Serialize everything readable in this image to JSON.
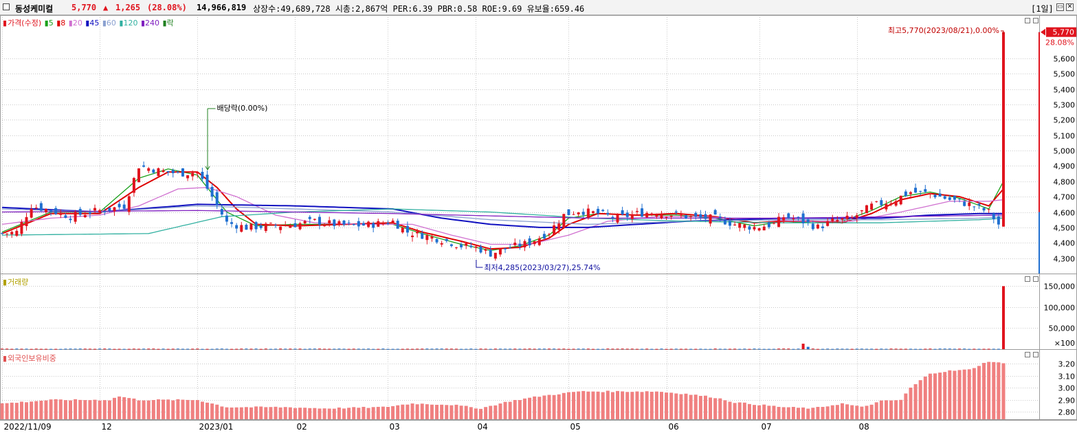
{
  "header": {
    "name": "동성케미컬",
    "price": "5,770",
    "change_arrow": "▲",
    "change": "1,265",
    "change_pct": "(28.08%)",
    "volume": "14,966,819",
    "stats": "상장수:49,689,728 시총:2,867억 PER:6.39 PBR:0.58 ROE:9.69 유보율:659.46",
    "period": "[1일]"
  },
  "legends": {
    "price": {
      "marker": "▮",
      "label": "가격(수정)",
      "items": [
        {
          "label": "5",
          "color": "#1aa01a"
        },
        {
          "label": "8",
          "color": "#dd0000"
        },
        {
          "label": "20",
          "color": "#d070d0"
        },
        {
          "label": "45",
          "color": "#1010c0"
        },
        {
          "label": "60",
          "color": "#8aa0d0"
        },
        {
          "label": "120",
          "color": "#30b0a0"
        },
        {
          "label": "240",
          "color": "#8020c0"
        },
        {
          "label": "락",
          "color": "#208020"
        }
      ]
    },
    "volume": {
      "marker": "▮",
      "label": "거래량"
    },
    "foreign": {
      "marker": "▮",
      "label": "외국인보유비중"
    }
  },
  "annotations": {
    "dividend": "배당락(0.00%)",
    "high": "최고5,770(2023/08/21),0.00%",
    "low": "최저4,285(2023/03/27),25.74%",
    "last_price": "5,770",
    "last_pct": "28.08%"
  },
  "colors": {
    "up": "#e0141e",
    "down": "#1f6fd0",
    "foreign": "#f08080",
    "grid": "#c8c8c8"
  },
  "chart_data": [
    {
      "type": "candlestick",
      "title": "가격(수정)",
      "ylim": [
        4200,
        5800
      ],
      "yticks": [
        4300,
        4400,
        4500,
        4600,
        4700,
        4800,
        4900,
        5000,
        5100,
        5200,
        5300,
        5400,
        5500,
        5600
      ],
      "ytick_labels": [
        "4,300",
        "4,400",
        "4,500",
        "4,600",
        "4,700",
        "4,800",
        "4,900",
        "5,000",
        "5,100",
        "5,200",
        "5,300",
        "5,400",
        "5,500",
        "5,600"
      ],
      "x_labels": [
        "2022/11/09",
        "12",
        "2023/01",
        "02",
        "03",
        "04",
        "05",
        "06",
        "07",
        "08"
      ],
      "close_trend": [
        [
          0,
          4460
        ],
        [
          3,
          4470
        ],
        [
          6,
          4640
        ],
        [
          10,
          4610
        ],
        [
          14,
          4570
        ],
        [
          18,
          4600
        ],
        [
          22,
          4620
        ],
        [
          25,
          4640
        ],
        [
          28,
          4900
        ],
        [
          32,
          4870
        ],
        [
          36,
          4850
        ],
        [
          40,
          4860
        ],
        [
          43,
          4700
        ],
        [
          46,
          4530
        ],
        [
          50,
          4500
        ],
        [
          55,
          4510
        ],
        [
          60,
          4520
        ],
        [
          64,
          4540
        ],
        [
          68,
          4520
        ],
        [
          72,
          4510
        ],
        [
          76,
          4520
        ],
        [
          80,
          4540
        ],
        [
          83,
          4470
        ],
        [
          86,
          4450
        ],
        [
          90,
          4420
        ],
        [
          94,
          4380
        ],
        [
          97,
          4370
        ],
        [
          100,
          4330
        ],
        [
          104,
          4370
        ],
        [
          108,
          4400
        ],
        [
          112,
          4470
        ],
        [
          115,
          4580
        ],
        [
          118,
          4610
        ],
        [
          122,
          4590
        ],
        [
          126,
          4560
        ],
        [
          130,
          4590
        ],
        [
          134,
          4600
        ],
        [
          138,
          4580
        ],
        [
          142,
          4560
        ],
        [
          146,
          4560
        ],
        [
          150,
          4520
        ],
        [
          154,
          4500
        ],
        [
          158,
          4520
        ],
        [
          160,
          4570
        ],
        [
          163,
          4550
        ],
        [
          167,
          4500
        ],
        [
          170,
          4540
        ],
        [
          174,
          4560
        ],
        [
          178,
          4640
        ],
        [
          182,
          4670
        ],
        [
          186,
          4730
        ],
        [
          190,
          4720
        ],
        [
          194,
          4680
        ],
        [
          198,
          4650
        ],
        [
          202,
          4600
        ],
        [
          204,
          4520
        ],
        [
          205,
          5770
        ]
      ],
      "ma_series": [
        {
          "name": "5",
          "values": [
            [
              0,
              4470
            ],
            [
              10,
              4600
            ],
            [
              20,
              4600
            ],
            [
              28,
              4820
            ],
            [
              34,
              4880
            ],
            [
              40,
              4840
            ],
            [
              46,
              4600
            ],
            [
              52,
              4510
            ],
            [
              60,
              4520
            ],
            [
              70,
              4520
            ],
            [
              80,
              4520
            ],
            [
              86,
              4460
            ],
            [
              94,
              4390
            ],
            [
              100,
              4350
            ],
            [
              106,
              4380
            ],
            [
              112,
              4450
            ],
            [
              116,
              4560
            ],
            [
              122,
              4590
            ],
            [
              130,
              4580
            ],
            [
              138,
              4580
            ],
            [
              146,
              4560
            ],
            [
              154,
              4510
            ],
            [
              160,
              4540
            ],
            [
              166,
              4530
            ],
            [
              172,
              4540
            ],
            [
              178,
              4610
            ],
            [
              184,
              4700
            ],
            [
              190,
              4730
            ],
            [
              196,
              4690
            ],
            [
              202,
              4620
            ],
            [
              205,
              4800
            ]
          ]
        },
        {
          "name": "8",
          "values": [
            [
              0,
              4460
            ],
            [
              10,
              4590
            ],
            [
              20,
              4590
            ],
            [
              28,
              4760
            ],
            [
              34,
              4860
            ],
            [
              40,
              4860
            ],
            [
              44,
              4760
            ],
            [
              48,
              4620
            ],
            [
              52,
              4520
            ],
            [
              60,
              4510
            ],
            [
              70,
              4520
            ],
            [
              80,
              4530
            ],
            [
              86,
              4470
            ],
            [
              94,
              4410
            ],
            [
              100,
              4360
            ],
            [
              106,
              4370
            ],
            [
              112,
              4430
            ],
            [
              116,
              4520
            ],
            [
              122,
              4590
            ],
            [
              130,
              4580
            ],
            [
              138,
              4590
            ],
            [
              146,
              4570
            ],
            [
              154,
              4530
            ],
            [
              160,
              4540
            ],
            [
              166,
              4540
            ],
            [
              172,
              4530
            ],
            [
              178,
              4590
            ],
            [
              184,
              4680
            ],
            [
              190,
              4720
            ],
            [
              196,
              4700
            ],
            [
              202,
              4640
            ],
            [
              205,
              4750
            ]
          ]
        },
        {
          "name": "20",
          "values": [
            [
              0,
              4520
            ],
            [
              10,
              4560
            ],
            [
              20,
              4580
            ],
            [
              28,
              4640
            ],
            [
              36,
              4750
            ],
            [
              42,
              4760
            ],
            [
              48,
              4700
            ],
            [
              56,
              4580
            ],
            [
              64,
              4530
            ],
            [
              74,
              4520
            ],
            [
              84,
              4520
            ],
            [
              92,
              4450
            ],
            [
              100,
              4390
            ],
            [
              108,
              4390
            ],
            [
              116,
              4450
            ],
            [
              124,
              4540
            ],
            [
              134,
              4570
            ],
            [
              144,
              4570
            ],
            [
              154,
              4550
            ],
            [
              164,
              4540
            ],
            [
              174,
              4540
            ],
            [
              184,
              4600
            ],
            [
              194,
              4670
            ],
            [
              202,
              4670
            ],
            [
              205,
              4680
            ]
          ]
        },
        {
          "name": "45",
          "values": [
            [
              0,
              4630
            ],
            [
              20,
              4600
            ],
            [
              40,
              4650
            ],
            [
              60,
              4640
            ],
            [
              80,
              4620
            ],
            [
              90,
              4560
            ],
            [
              100,
              4520
            ],
            [
              110,
              4500
            ],
            [
              120,
              4500
            ],
            [
              130,
              4520
            ],
            [
              140,
              4540
            ],
            [
              150,
              4550
            ],
            [
              160,
              4560
            ],
            [
              170,
              4560
            ],
            [
              180,
              4560
            ],
            [
              190,
              4580
            ],
            [
              200,
              4590
            ],
            [
              205,
              4590
            ]
          ]
        },
        {
          "name": "60",
          "values": [
            [
              0,
              4620
            ],
            [
              20,
              4600
            ],
            [
              40,
              4640
            ],
            [
              60,
              4620
            ],
            [
              80,
              4600
            ],
            [
              100,
              4550
            ],
            [
              120,
              4520
            ],
            [
              140,
              4540
            ],
            [
              160,
              4550
            ],
            [
              180,
              4550
            ],
            [
              200,
              4560
            ],
            [
              205,
              4570
            ]
          ]
        },
        {
          "name": "120",
          "values": [
            [
              0,
              4450
            ],
            [
              30,
              4460
            ],
            [
              45,
              4570
            ],
            [
              60,
              4600
            ],
            [
              80,
              4620
            ],
            [
              100,
              4600
            ],
            [
              120,
              4560
            ],
            [
              140,
              4540
            ],
            [
              160,
              4530
            ],
            [
              180,
              4530
            ],
            [
              200,
              4550
            ],
            [
              205,
              4560
            ]
          ]
        },
        {
          "name": "240",
          "values": [
            [
              0,
              4600
            ],
            [
              40,
              4610
            ],
            [
              80,
              4590
            ],
            [
              120,
              4560
            ],
            [
              160,
              4560
            ],
            [
              205,
              4580
            ]
          ]
        }
      ]
    },
    {
      "type": "bar",
      "title": "거래량",
      "ylim": [
        0,
        160000
      ],
      "yticks": [
        50000,
        100000,
        150000
      ],
      "ytick_labels": [
        "50,000",
        "100,000",
        "150,000"
      ],
      "unit_label": "×100",
      "baseline": 500,
      "spikes": [
        [
          164,
          13000
        ],
        [
          165,
          5500
        ],
        [
          205,
          149670
        ]
      ]
    },
    {
      "type": "bar",
      "title": "외국인보유비중",
      "ylim": [
        2.74,
        3.28
      ],
      "yticks": [
        2.8,
        2.9,
        3.0,
        3.1,
        3.2
      ],
      "ytick_labels": [
        "2.80",
        "2.90",
        "3.00",
        "3.10",
        "3.20"
      ],
      "trend": [
        [
          0,
          2.87
        ],
        [
          10,
          2.9
        ],
        [
          22,
          2.9
        ],
        [
          24,
          2.93
        ],
        [
          28,
          2.9
        ],
        [
          40,
          2.9
        ],
        [
          46,
          2.84
        ],
        [
          58,
          2.84
        ],
        [
          66,
          2.83
        ],
        [
          78,
          2.84
        ],
        [
          84,
          2.87
        ],
        [
          92,
          2.86
        ],
        [
          98,
          2.83
        ],
        [
          104,
          2.89
        ],
        [
          110,
          2.93
        ],
        [
          118,
          2.97
        ],
        [
          124,
          2.97
        ],
        [
          134,
          2.97
        ],
        [
          140,
          2.95
        ],
        [
          146,
          2.92
        ],
        [
          150,
          2.88
        ],
        [
          160,
          2.84
        ],
        [
          166,
          2.83
        ],
        [
          172,
          2.87
        ],
        [
          176,
          2.84
        ],
        [
          180,
          2.89
        ],
        [
          184,
          2.9
        ],
        [
          186,
          3.0
        ],
        [
          190,
          3.12
        ],
        [
          194,
          3.14
        ],
        [
          198,
          3.15
        ],
        [
          202,
          3.22
        ],
        [
          205,
          3.2
        ]
      ]
    }
  ]
}
